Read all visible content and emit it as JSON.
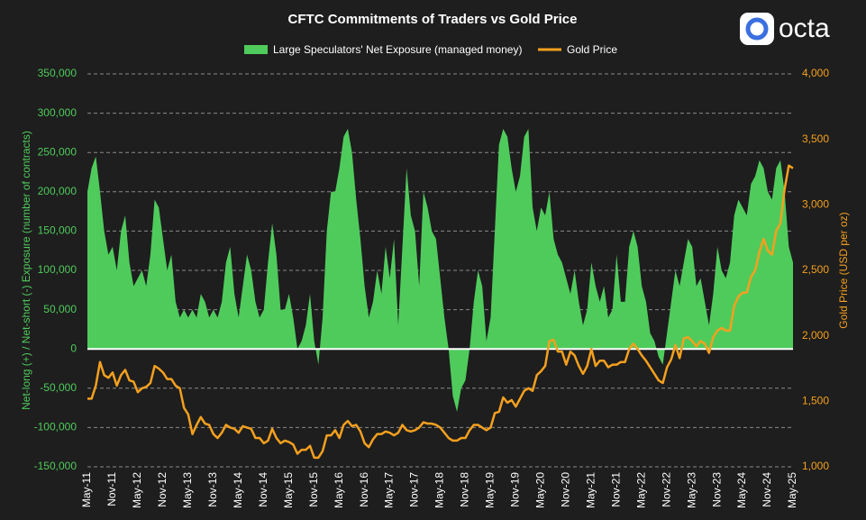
{
  "brand": "octa",
  "chart_data": {
    "type": "area-line",
    "title": "CFTC Commitments of Traders vs Gold Price",
    "y_label": "Net-long (+) / Net-short (-) Exposure (number of contracts)",
    "y2_label": "Gold Price (USD per oz)",
    "legend": "top",
    "grid": true,
    "categories": [
      "May-11",
      null,
      null,
      null,
      null,
      null,
      "Nov-11",
      null,
      null,
      null,
      null,
      null,
      "May-12",
      null,
      null,
      null,
      null,
      null,
      "Nov-12",
      null,
      null,
      null,
      null,
      null,
      "May-13",
      null,
      null,
      null,
      null,
      null,
      "Nov-13",
      null,
      null,
      null,
      null,
      null,
      "May-14",
      null,
      null,
      null,
      null,
      null,
      "Nov-14",
      null,
      null,
      null,
      null,
      null,
      "May-15",
      null,
      null,
      null,
      null,
      null,
      "Nov-15",
      null,
      null,
      null,
      null,
      null,
      "May-16",
      null,
      null,
      null,
      null,
      null,
      "Nov-16",
      null,
      null,
      null,
      null,
      null,
      "May-17",
      null,
      null,
      null,
      null,
      null,
      "Nov-17",
      null,
      null,
      null,
      null,
      null,
      "May-18",
      null,
      null,
      null,
      null,
      null,
      "Nov-18",
      null,
      null,
      null,
      null,
      null,
      "May-19",
      null,
      null,
      null,
      null,
      null,
      "Nov-19",
      null,
      null,
      null,
      null,
      null,
      "May-20",
      null,
      null,
      null,
      null,
      null,
      "Nov-20",
      null,
      null,
      null,
      null,
      null,
      "May-21",
      null,
      null,
      null,
      null,
      null,
      "Nov-21",
      null,
      null,
      null,
      null,
      null,
      "May-22",
      null,
      null,
      null,
      null,
      null,
      "Nov-22",
      null,
      null,
      null,
      null,
      null,
      "May-23",
      null,
      null,
      null,
      null,
      null,
      "Nov-23",
      null,
      null,
      null,
      null,
      null,
      "May-24",
      null,
      null,
      null,
      null,
      null,
      "Nov-24",
      null,
      null,
      null,
      null,
      null,
      "May-25"
    ],
    "series": [
      {
        "name": "Large Speculators' Net Exposure (managed money)",
        "color": "#4fcb5c",
        "values": [
          200000,
          230000,
          245000,
          200000,
          150000,
          120000,
          130000,
          100000,
          150000,
          170000,
          110000,
          80000,
          90000,
          100000,
          80000,
          120000,
          190000,
          180000,
          140000,
          100000,
          120000,
          60000,
          40000,
          50000,
          40000,
          50000,
          40000,
          70000,
          60000,
          40000,
          50000,
          40000,
          60000,
          110000,
          130000,
          70000,
          40000,
          80000,
          120000,
          100000,
          60000,
          40000,
          50000,
          110000,
          160000,
          120000,
          50000,
          50000,
          70000,
          40000,
          0,
          10000,
          30000,
          70000,
          10000,
          -20000,
          40000,
          150000,
          200000,
          200000,
          230000,
          270000,
          280000,
          250000,
          190000,
          140000,
          80000,
          40000,
          60000,
          100000,
          70000,
          130000,
          90000,
          140000,
          30000,
          130000,
          230000,
          170000,
          150000,
          80000,
          200000,
          180000,
          150000,
          140000,
          90000,
          40000,
          0,
          -60000,
          -80000,
          -50000,
          -40000,
          0,
          60000,
          100000,
          80000,
          10000,
          40000,
          150000,
          260000,
          280000,
          270000,
          230000,
          200000,
          220000,
          270000,
          280000,
          180000,
          150000,
          180000,
          170000,
          200000,
          140000,
          120000,
          110000,
          90000,
          70000,
          100000,
          60000,
          30000,
          50000,
          110000,
          80000,
          60000,
          80000,
          40000,
          50000,
          120000,
          60000,
          60000,
          130000,
          150000,
          130000,
          80000,
          60000,
          20000,
          10000,
          -10000,
          -20000,
          20000,
          60000,
          100000,
          80000,
          110000,
          140000,
          130000,
          80000,
          90000,
          60000,
          30000,
          70000,
          130000,
          100000,
          90000,
          110000,
          170000,
          190000,
          180000,
          170000,
          210000,
          220000,
          240000,
          230000,
          200000,
          190000,
          230000,
          240000,
          200000,
          130000,
          110000
        ]
      },
      {
        "name": "Gold Price",
        "color": "#f5a01e",
        "axis": "y2",
        "values": [
          1520,
          1520,
          1620,
          1800,
          1700,
          1680,
          1720,
          1620,
          1700,
          1740,
          1660,
          1650,
          1570,
          1600,
          1610,
          1640,
          1770,
          1750,
          1720,
          1670,
          1670,
          1620,
          1600,
          1450,
          1400,
          1250,
          1320,
          1380,
          1330,
          1320,
          1250,
          1220,
          1260,
          1320,
          1300,
          1290,
          1260,
          1310,
          1300,
          1290,
          1220,
          1220,
          1180,
          1200,
          1290,
          1220,
          1180,
          1200,
          1190,
          1170,
          1100,
          1130,
          1130,
          1160,
          1070,
          1070,
          1120,
          1240,
          1240,
          1280,
          1220,
          1320,
          1350,
          1310,
          1320,
          1270,
          1180,
          1150,
          1210,
          1250,
          1250,
          1270,
          1260,
          1240,
          1260,
          1320,
          1280,
          1270,
          1280,
          1300,
          1340,
          1330,
          1330,
          1320,
          1300,
          1260,
          1220,
          1200,
          1200,
          1220,
          1220,
          1280,
          1320,
          1320,
          1300,
          1280,
          1300,
          1410,
          1420,
          1530,
          1490,
          1510,
          1460,
          1520,
          1580,
          1600,
          1580,
          1700,
          1730,
          1770,
          1960,
          1970,
          1880,
          1880,
          1780,
          1880,
          1850,
          1770,
          1710,
          1770,
          1900,
          1770,
          1810,
          1810,
          1760,
          1780,
          1780,
          1800,
          1800,
          1900,
          1940,
          1900,
          1850,
          1810,
          1760,
          1710,
          1660,
          1640,
          1760,
          1820,
          1930,
          1830,
          1980,
          1990,
          1960,
          1920,
          1960,
          1940,
          1870,
          1990,
          2040,
          2060,
          2040,
          2040,
          2230,
          2300,
          2330,
          2330,
          2450,
          2500,
          2640,
          2740,
          2650,
          2620,
          2800,
          2860,
          3120,
          3300,
          3280
        ]
      }
    ],
    "ylim": [
      -150000,
      350000
    ],
    "yticks": [
      {
        "value": -150000,
        "label": "-150,000"
      },
      {
        "value": -100000,
        "label": "-100,000"
      },
      {
        "value": -50000,
        "label": "-50,000"
      },
      0,
      {
        "value": 50000,
        "label": "50,000"
      },
      {
        "value": 100000,
        "label": "100,000"
      },
      {
        "value": 150000,
        "label": "150,000"
      },
      {
        "value": 200000,
        "label": "200,000"
      },
      {
        "value": 250000,
        "label": "250,000"
      },
      {
        "value": 300000,
        "label": "300,000"
      },
      {
        "value": 350000,
        "label": "350,000"
      }
    ],
    "y2lim": [
      1000,
      4000
    ],
    "y2ticks": [
      {
        "value": 1000,
        "label": "1,000"
      },
      {
        "value": 1500,
        "label": "1,500"
      },
      {
        "value": 2000,
        "label": "2,000"
      },
      {
        "value": 2500,
        "label": "2,500"
      },
      {
        "value": 3000,
        "label": "3,000"
      },
      {
        "value": 3500,
        "label": "3,500"
      },
      {
        "value": 4000,
        "label": "4,000"
      }
    ]
  }
}
